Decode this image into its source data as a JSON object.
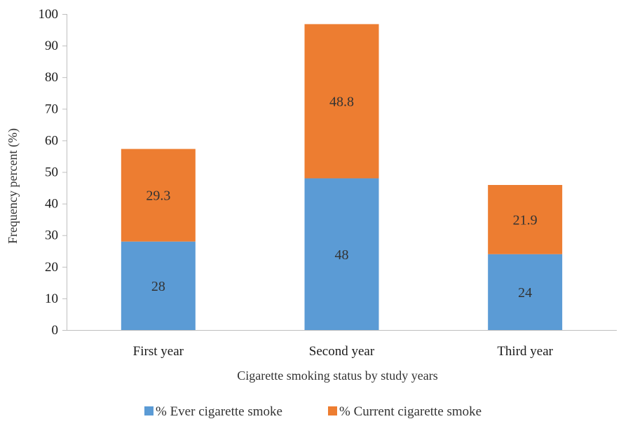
{
  "chart_data": {
    "type": "bar",
    "stacked": true,
    "title": "",
    "xlabel": "Cigarette smoking status by study years",
    "ylabel": "Frequency percent (%)",
    "ylim": [
      0,
      100
    ],
    "yticks": [
      0,
      10,
      20,
      30,
      40,
      50,
      60,
      70,
      80,
      90,
      100
    ],
    "categories": [
      "First year",
      "Second year",
      "Third year"
    ],
    "series": [
      {
        "name": "% Ever cigarette smoke",
        "color": "#5b9bd5",
        "values": [
          28,
          48,
          24
        ],
        "labels": [
          "28",
          "48",
          "24"
        ]
      },
      {
        "name": "% Current cigarette smoke",
        "color": "#ed7d31",
        "values": [
          29.3,
          48.8,
          21.9
        ],
        "labels": [
          "29.3",
          "48.8",
          "21.9"
        ]
      }
    ],
    "legend_position": "bottom",
    "grid": false
  }
}
